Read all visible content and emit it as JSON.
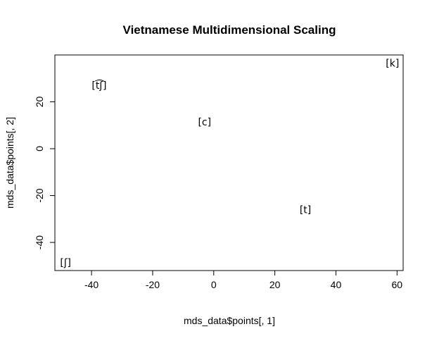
{
  "chart_data": {
    "type": "scatter",
    "title": "Vietnamese Multidimensional Scaling",
    "xlabel": "mds_data$points[, 1]",
    "ylabel": "mds_data$points[, 2]",
    "xlim": [
      -52,
      62
    ],
    "ylim": [
      -52,
      40
    ],
    "xticks": [
      -40,
      -20,
      0,
      20,
      40,
      60
    ],
    "yticks": [
      -40,
      -20,
      0,
      20
    ],
    "grid": false,
    "points": [
      {
        "label": "[k]",
        "x": 58.5,
        "y": 36.5
      },
      {
        "label": "[t͡ʃ]",
        "x": -37.5,
        "y": 27.0
      },
      {
        "label": "[c]",
        "x": -3,
        "y": 11.5
      },
      {
        "label": "[t]",
        "x": 30,
        "y": -26.0
      },
      {
        "label": "[ʃ]",
        "x": -48.5,
        "y": -48.5
      }
    ]
  }
}
